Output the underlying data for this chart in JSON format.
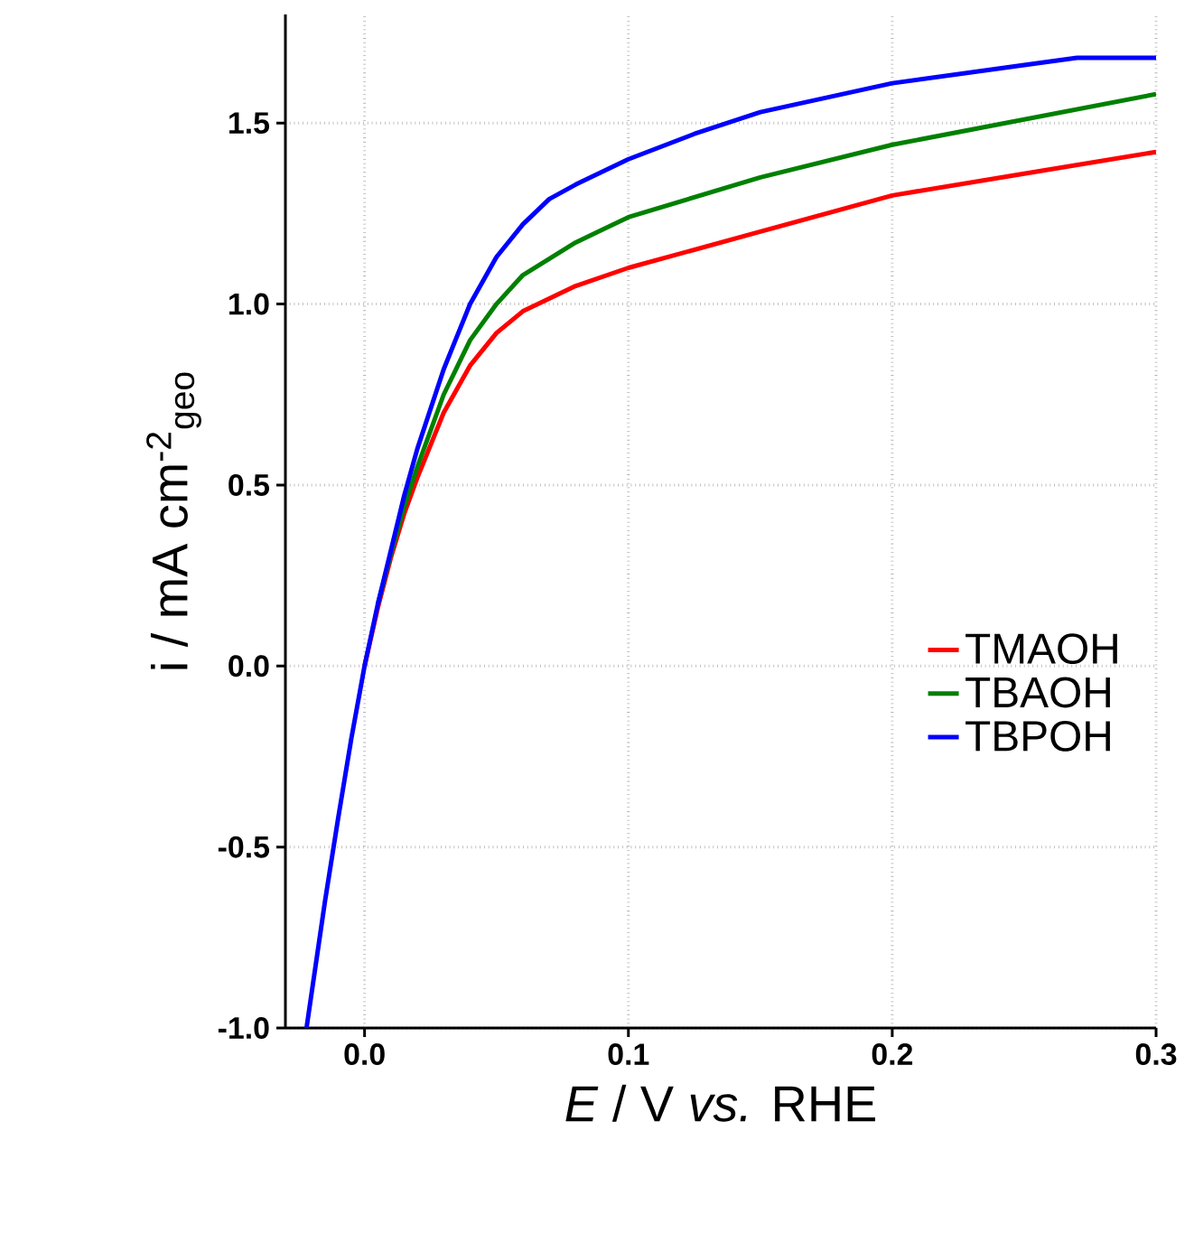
{
  "chart_data": {
    "type": "line",
    "xlabel": "*E* / V *vs.* RHE",
    "ylabel": "i / mA cm$^{-2}$$_{geo}$",
    "xlim": [
      -0.03,
      0.3
    ],
    "ylim": [
      -1.0,
      1.8
    ],
    "xticks": [
      {
        "value": 0,
        "label": "0.0"
      },
      {
        "value": 0.1,
        "label": "0.1"
      },
      {
        "value": 0.2,
        "label": "0.2"
      },
      {
        "value": 0.3,
        "label": "0.3"
      }
    ],
    "yticks": [
      {
        "value": -1.0,
        "label": "-1.0"
      },
      {
        "value": -0.5,
        "label": "-0.5"
      },
      {
        "value": 0,
        "label": "0.0"
      },
      {
        "value": 0.5,
        "label": "0.5"
      },
      {
        "value": 1.0,
        "label": "1.0"
      },
      {
        "value": 1.5,
        "label": "1.5"
      }
    ],
    "grid": true,
    "legend": "right",
    "marker": "none",
    "line_style": "solid",
    "series": [
      {
        "name": "TMAOH",
        "color": "#ff0000",
        "x": [
          0,
          0.005,
          0.01,
          0.015,
          0.02,
          0.03,
          0.04,
          0.05,
          0.06,
          0.08,
          0.1,
          0.15,
          0.2,
          0.25,
          0.3
        ],
        "values": [
          0,
          0.16,
          0.3,
          0.42,
          0.52,
          0.7,
          0.83,
          0.92,
          0.98,
          1.05,
          1.1,
          1.2,
          1.3,
          1.36,
          1.42
        ]
      },
      {
        "name": "TBAOH",
        "color": "#008000",
        "x": [
          0.005,
          0.01,
          0.015,
          0.02,
          0.03,
          0.04,
          0.05,
          0.06,
          0.08,
          0.1,
          0.15,
          0.2,
          0.25,
          0.3
        ],
        "values": [
          0.17,
          0.31,
          0.44,
          0.55,
          0.75,
          0.9,
          1.0,
          1.08,
          1.17,
          1.24,
          1.35,
          1.44,
          1.51,
          1.58
        ]
      },
      {
        "name": "TBPOH",
        "color": "#0000ff",
        "x": [
          -0.022,
          -0.015,
          -0.01,
          -0.005,
          0,
          0.005,
          0.01,
          0.015,
          0.02,
          0.03,
          0.04,
          0.05,
          0.06,
          0.07,
          0.08,
          0.1,
          0.125,
          0.15,
          0.2,
          0.25,
          0.27,
          0.3
        ],
        "values": [
          -1.0,
          -0.65,
          -0.42,
          -0.2,
          0,
          0.17,
          0.32,
          0.47,
          0.6,
          0.82,
          1.0,
          1.13,
          1.22,
          1.29,
          1.33,
          1.4,
          1.47,
          1.53,
          1.61,
          1.66,
          1.68,
          1.68
        ]
      }
    ]
  }
}
